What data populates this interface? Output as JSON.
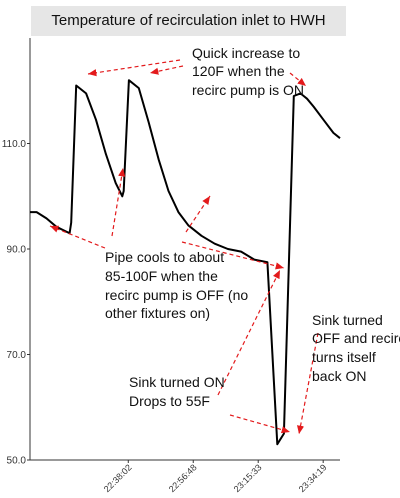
{
  "chart_data": {
    "type": "line",
    "title": "Temperature of recirculation inlet to HWH",
    "xlabel": "",
    "ylabel": "",
    "ylim": [
      50,
      130
    ],
    "yticks": [
      "110.0",
      "90.0",
      "70.0",
      "50.0"
    ],
    "xticks": [
      "22:38:02",
      "22:56:48",
      "23:15:33",
      "23:34:19"
    ],
    "series": [
      {
        "x_minutes": [
          0,
          2,
          5,
          8,
          11,
          12,
          12.5,
          14,
          17,
          20,
          23,
          26,
          28,
          28.4,
          30,
          33,
          36,
          39,
          42,
          45,
          48,
          52,
          56,
          60,
          64,
          68,
          72,
          75,
          77,
          80,
          82,
          83,
          84,
          86,
          89,
          92,
          94
        ],
        "values": [
          97,
          97,
          95.8,
          94.2,
          93.3,
          93,
          95,
          121,
          119.5,
          114.5,
          108,
          102.5,
          100,
          101,
          122,
          120.5,
          114,
          107,
          101,
          97,
          94.5,
          92.5,
          91,
          90,
          89.5,
          88,
          87.5,
          53,
          55,
          119,
          119.5,
          119,
          118.5,
          117,
          114.5,
          112,
          111
        ]
      }
    ],
    "annotations": [
      "Quick increase to",
      "120F when the",
      "recirc pump is ON",
      "Pipe cools to about",
      "85-100F when the",
      "recirc pump is OFF (no",
      "other fixtures on)",
      "Sink turned",
      "OFF and recirc",
      "turns itself",
      "back ON",
      "Sink turned ON",
      "Drops to 55F"
    ]
  }
}
